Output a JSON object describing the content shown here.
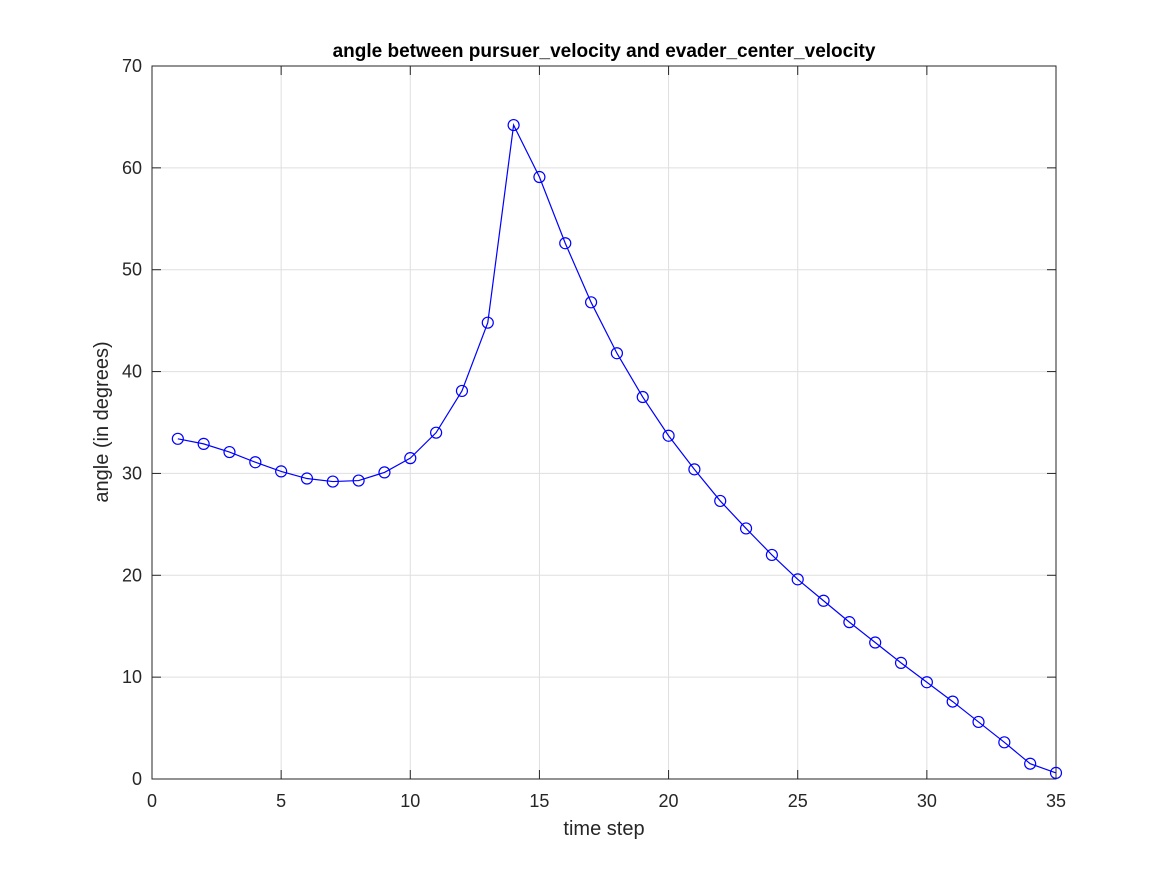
{
  "chart_data": {
    "type": "line",
    "title": "angle between pursuer_velocity and evader_center_velocity",
    "xlabel": "time step",
    "ylabel": "angle (in degrees)",
    "xlim": [
      0,
      35
    ],
    "ylim": [
      0,
      70
    ],
    "xticks": [
      0,
      5,
      10,
      15,
      20,
      25,
      30,
      35
    ],
    "yticks": [
      0,
      10,
      20,
      30,
      40,
      50,
      60,
      70
    ],
    "grid": true,
    "legend": "none",
    "marker": "circle",
    "line_color": "#0000ff",
    "series": [
      {
        "x": [
          1,
          2,
          3,
          4,
          5,
          6,
          7,
          8,
          9,
          10,
          11,
          12,
          13,
          14,
          15,
          16,
          17,
          18,
          19,
          20,
          21,
          22,
          23,
          24,
          25,
          26,
          27,
          28,
          29,
          30,
          31,
          32,
          33,
          34,
          35
        ],
        "values": [
          33.4,
          32.9,
          32.1,
          31.1,
          30.2,
          29.5,
          29.2,
          29.3,
          30.1,
          31.5,
          34.0,
          38.1,
          44.8,
          64.2,
          59.1,
          52.6,
          46.8,
          41.8,
          37.5,
          33.7,
          30.4,
          27.3,
          24.6,
          22.0,
          19.6,
          17.5,
          15.4,
          13.4,
          11.4,
          9.5,
          7.6,
          5.6,
          3.6,
          1.5,
          0.6
        ]
      }
    ]
  }
}
